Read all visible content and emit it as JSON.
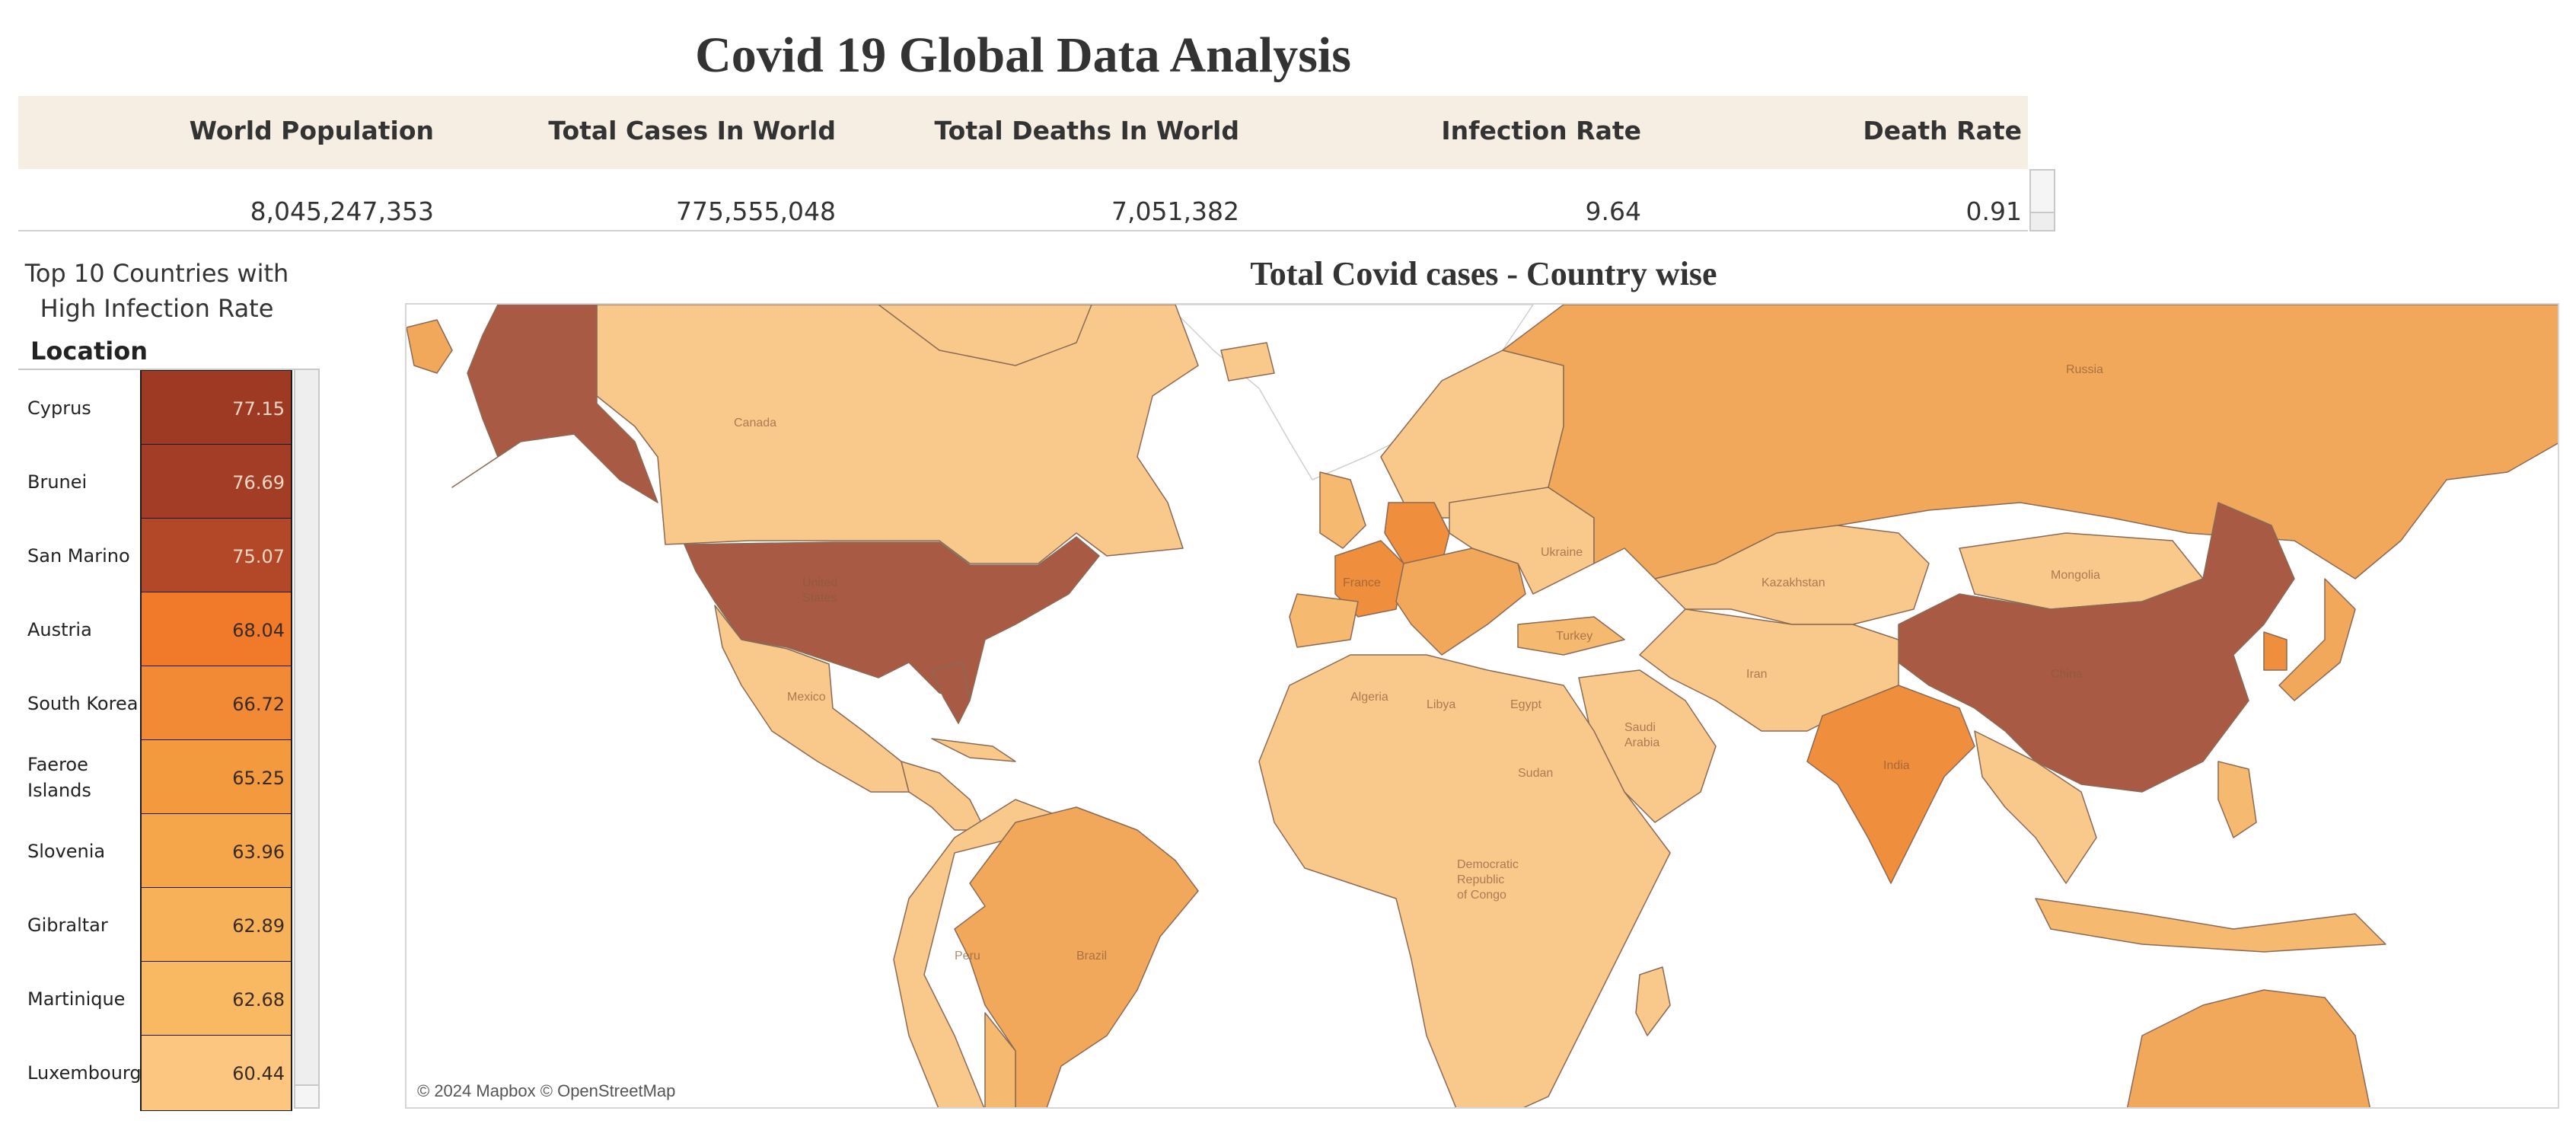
{
  "page_title": "Covid 19 Global Data Analysis",
  "kpis": [
    {
      "label": "World Population",
      "value": "8,045,247,353"
    },
    {
      "label": "Total Cases In World",
      "value": "775,555,048"
    },
    {
      "label": "Total Deaths In World",
      "value": "7,051,382"
    },
    {
      "label": "Infection Rate",
      "value": "9.64"
    },
    {
      "label": "Death Rate",
      "value": "0.91"
    }
  ],
  "top10": {
    "title_line1": "Top 10 Countries with",
    "title_line2": "High Infection Rate",
    "column_header": "Location",
    "rows": [
      {
        "name": "Cyprus",
        "value": "77.15",
        "color": "#9e3a24"
      },
      {
        "name": "Brunei",
        "value": "76.69",
        "color": "#a43d25"
      },
      {
        "name": "San Marino",
        "value": "75.07",
        "color": "#b24827"
      },
      {
        "name": "Austria",
        "value": "68.04",
        "color": "#f07a2a"
      },
      {
        "name": "South Korea",
        "value": "66.72",
        "color": "#f28a35"
      },
      {
        "name": "Faeroe Islands",
        "value": "65.25",
        "color": "#f39a3e"
      },
      {
        "name": "Slovenia",
        "value": "63.96",
        "color": "#f5a64a"
      },
      {
        "name": "Gibraltar",
        "value": "62.89",
        "color": "#f7b158"
      },
      {
        "name": "Martinique",
        "value": "62.68",
        "color": "#f8b962"
      },
      {
        "name": "Luxembourg",
        "value": "60.44",
        "color": "#fcc681"
      }
    ]
  },
  "map": {
    "title": "Total Covid cases - Country wise",
    "credit": "© 2024 Mapbox © OpenStreetMap",
    "labels": {
      "canada": "Canada",
      "us_line1": "United",
      "us_line2": "States",
      "mexico": "Mexico",
      "brazil": "Brazil",
      "peru": "Peru",
      "russia": "Russia",
      "kazakhstan": "Kazakhstan",
      "mongolia": "Mongolia",
      "china": "China",
      "india": "India",
      "iran": "Iran",
      "turkey": "Turkey",
      "algeria": "Algeria",
      "libya": "Libya",
      "egypt": "Egypt",
      "sudan": "Sudan",
      "saudi_line1": "Saudi",
      "saudi_line2": "Arabia",
      "drc_line1": "Democratic",
      "drc_line2": "Republic",
      "drc_line3": "of Congo",
      "france": "France",
      "ukraine": "Ukraine"
    },
    "colors": {
      "lightest": "#f9c98c",
      "light": "#f6b970",
      "medium": "#f2a85a",
      "orange": "#ef8e3c",
      "dark": "#a85a45",
      "border": "#8a6a55"
    }
  }
}
